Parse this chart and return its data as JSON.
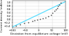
{
  "title": "",
  "xlabel": "Deviation from equilibrium voltage (mV)",
  "ylabel": "Current density (mA/cm²)",
  "xlim": [
    -100,
    100
  ],
  "ylim": [
    -0.5,
    1.1
  ],
  "xticks": [
    -100,
    -50,
    0,
    50,
    100
  ],
  "yticks": [
    -0.4,
    -0.2,
    0.0,
    0.2,
    0.4,
    0.6,
    0.8,
    1.0
  ],
  "scatter_x": [
    -85,
    -70,
    -55,
    -40,
    -25,
    -15,
    -5,
    5,
    15,
    25,
    35,
    45,
    52,
    58,
    64,
    68,
    73,
    78,
    83
  ],
  "scatter_y": [
    -0.38,
    -0.3,
    -0.23,
    -0.17,
    -0.1,
    -0.06,
    -0.02,
    0.03,
    0.07,
    0.12,
    0.18,
    0.28,
    0.4,
    0.5,
    0.6,
    0.68,
    0.78,
    0.88,
    0.98
  ],
  "line_x": [
    -100,
    100
  ],
  "line_y": [
    -0.46,
    1.06
  ],
  "line_color": "#55ddff",
  "scatter_color": "#444444",
  "grid_color": "#cccccc",
  "bg_color": "#ffffff",
  "xlabel_fontsize": 3.0,
  "ylabel_fontsize": 3.0,
  "tick_fontsize": 2.8,
  "linewidth": 0.9,
  "scatter_size": 1.5
}
